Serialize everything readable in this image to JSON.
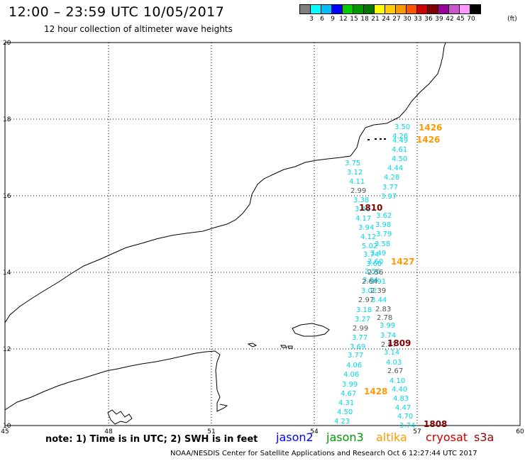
{
  "header": {
    "title": "12:00 – 23:59 UTC 10/05/2017",
    "subtitle": "12 hour collection of altimeter wave heights"
  },
  "legend": {
    "colors": [
      "#808080",
      "#00ffff",
      "#00bfff",
      "#0000ff",
      "#00cc00",
      "#009900",
      "#007700",
      "#ffff00",
      "#ffcc00",
      "#ff9900",
      "#ff5500",
      "#cc0000",
      "#800000",
      "#990099",
      "#cc55cc",
      "#ff99ff",
      "#000000"
    ],
    "labels": [
      "3",
      "6",
      "9",
      "12",
      "15",
      "18",
      "21",
      "24",
      "27",
      "30",
      "33",
      "36",
      "39",
      "42",
      "45",
      "70"
    ],
    "unit": "(ft)"
  },
  "axes": {
    "x_ticks": [
      "45",
      "48",
      "51",
      "54",
      "57",
      "60"
    ],
    "y_ticks": [
      "20",
      "18",
      "16",
      "14",
      "12",
      "10"
    ]
  },
  "observations": {
    "cyan": [
      "3.50",
      "4.26",
      "4.49",
      "4.61",
      "4.50",
      "4.44",
      "4.28",
      "3.77",
      "3.97",
      "3.75",
      "3.12",
      "4.11",
      "3.38",
      "3.46",
      "4.17",
      "3.94",
      "4.12",
      "5.02",
      "3.74",
      "3.60",
      "3.62",
      "3.98",
      "3.79",
      "3.58",
      "3.49",
      "3.60",
      "3.56",
      "3.64",
      "3.91",
      "3.02",
      "3.44",
      "3.18",
      "3.27",
      "3.99",
      "3.74",
      "3.77",
      "3.69",
      "3.77",
      "4.06",
      "4.06",
      "3.99",
      "4.67",
      "4.31",
      "4.50",
      "4.23",
      "3.14",
      "4.03",
      "4.10",
      "4.40",
      "4.83",
      "4.47",
      "4.70",
      "3.74"
    ],
    "gray": [
      "2.99",
      "2.56",
      "2.64",
      "2.39",
      "2.97",
      "2.83",
      "2.78",
      "2.99",
      "2.87",
      "2.67"
    ]
  },
  "time_marks": [
    {
      "label": "1426",
      "color": "#ff9900"
    },
    {
      "label": "1426",
      "color": "#ff9900"
    },
    {
      "label": "1810",
      "color": "#800000"
    },
    {
      "label": "1427",
      "color": "#ff9900"
    },
    {
      "label": "1809",
      "color": "#800000"
    },
    {
      "label": "1428",
      "color": "#ff9900"
    },
    {
      "label": "1808",
      "color": "#800000"
    }
  ],
  "note": "note: 1) Time is in UTC; 2) SWH is in feet",
  "satellites": [
    {
      "name": "jason2",
      "color": "#0000ff"
    },
    {
      "name": "jason3",
      "color": "#009900"
    },
    {
      "name": "altika",
      "color": "#ff9900"
    },
    {
      "name": "cryosat",
      "color": "#cc0000"
    },
    {
      "name": "s3a",
      "color": "#990000"
    }
  ],
  "footer": "NOAA/NESDIS Center for Satellite Applications and Research   Oct  6 12:27:44 UTC 2017"
}
